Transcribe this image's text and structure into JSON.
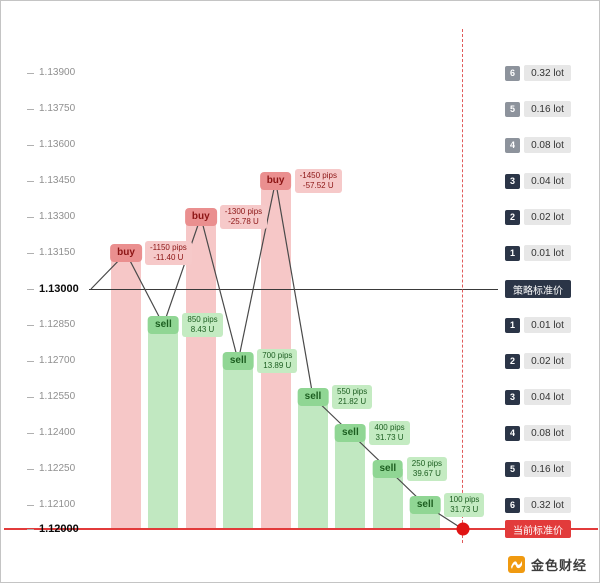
{
  "colors": {
    "buy_bar": "#e97272",
    "sell_bar": "#6cc76c",
    "strategy_line": "#3a3a3a",
    "current_line": "#e23b3b",
    "dashed_line": "#e05a5a",
    "dot": "#e01414",
    "active_level": "#2b3547",
    "inactive_level": "#8d939c",
    "watermark_orange": "#f09a10"
  },
  "chart_data": {
    "type": "line",
    "title": "",
    "xlabel": "",
    "ylabel": "",
    "y_axis": {
      "min": 1.12,
      "max": 1.139,
      "tick_labels": [
        "1.13900",
        "1.13750",
        "1.13600",
        "1.13450",
        "1.13300",
        "1.13150",
        "1.13000",
        "1.12850",
        "1.12700",
        "1.12550",
        "1.12400",
        "1.12250",
        "1.12100",
        "1.12000"
      ],
      "bold_labels": [
        "1.13000",
        "1.12000"
      ]
    },
    "strategy_price": "1.13000",
    "current_price": "1.12000",
    "points": [
      {
        "kind": "start",
        "price": 1.13
      },
      {
        "kind": "buy",
        "label": "buy",
        "price": 1.1315,
        "pips": "-1150 pips",
        "profit": "-11.40 U"
      },
      {
        "kind": "sell",
        "label": "sell",
        "price": 1.1285,
        "pips": "850 pips",
        "profit": "8.43 U"
      },
      {
        "kind": "buy",
        "label": "buy",
        "price": 1.133,
        "pips": "-1300 pips",
        "profit": "-25.78 U"
      },
      {
        "kind": "sell",
        "label": "sell",
        "price": 1.127,
        "pips": "700 pips",
        "profit": "13.89 U"
      },
      {
        "kind": "buy",
        "label": "buy",
        "price": 1.1345,
        "pips": "-1450 pips",
        "profit": "-57.52 U"
      },
      {
        "kind": "sell",
        "label": "sell",
        "price": 1.1255,
        "pips": "550 pips",
        "profit": "21.82 U"
      },
      {
        "kind": "sell",
        "label": "sell",
        "price": 1.124,
        "pips": "400 pips",
        "profit": "31.73 U"
      },
      {
        "kind": "sell",
        "label": "sell",
        "price": 1.1225,
        "pips": "250 pips",
        "profit": "39.67 U"
      },
      {
        "kind": "sell",
        "label": "sell",
        "price": 1.121,
        "pips": "100 pips",
        "profit": "31.73 U"
      },
      {
        "kind": "end",
        "price": 1.12
      }
    ]
  },
  "right_panel": {
    "upper_levels": [
      {
        "num": "6",
        "lot": "0.32 lot",
        "price": 1.139,
        "active": false
      },
      {
        "num": "5",
        "lot": "0.16 lot",
        "price": 1.1375,
        "active": false
      },
      {
        "num": "4",
        "lot": "0.08 lot",
        "price": 1.136,
        "active": false
      },
      {
        "num": "3",
        "lot": "0.04 lot",
        "price": 1.1345,
        "active": true
      },
      {
        "num": "2",
        "lot": "0.02 lot",
        "price": 1.133,
        "active": true
      },
      {
        "num": "1",
        "lot": "0.01 lot",
        "price": 1.1315,
        "active": true
      }
    ],
    "strategy_badge": "策略标准价",
    "lower_levels": [
      {
        "num": "1",
        "lot": "0.01 lot",
        "price": 1.1285,
        "active": true
      },
      {
        "num": "2",
        "lot": "0.02 lot",
        "price": 1.127,
        "active": true
      },
      {
        "num": "3",
        "lot": "0.04 lot",
        "price": 1.1255,
        "active": true
      },
      {
        "num": "4",
        "lot": "0.08 lot",
        "price": 1.124,
        "active": true
      },
      {
        "num": "5",
        "lot": "0.16 lot",
        "price": 1.1225,
        "active": true
      },
      {
        "num": "6",
        "lot": "0.32 lot",
        "price": 1.121,
        "active": true
      }
    ],
    "current_badge": "当前标准价"
  },
  "watermark": {
    "text": "金色财经"
  }
}
